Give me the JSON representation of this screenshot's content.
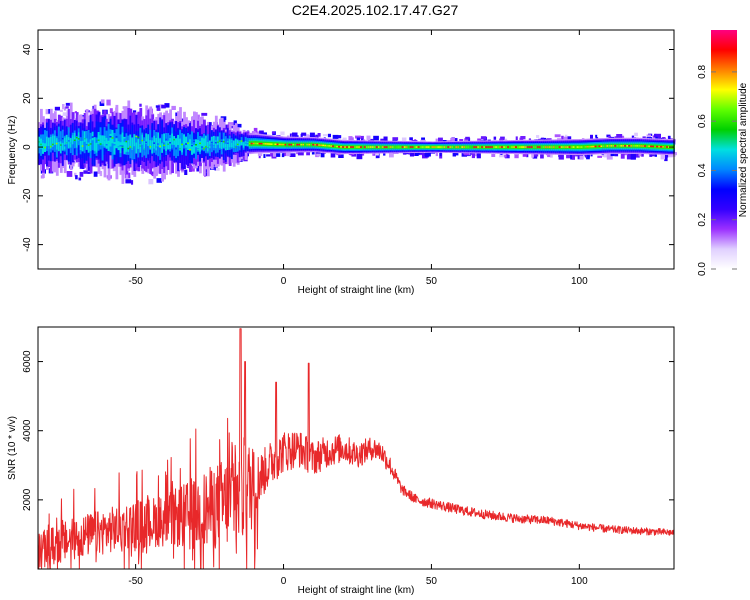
{
  "title": "C2E4.2025.102.17.47.G27",
  "colors": {
    "snr_line": "#e8282a",
    "axis": "#000000",
    "background": "#ffffff"
  },
  "colorbar": {
    "label": "Normalized spectral amplitude",
    "range": [
      0,
      0.97
    ],
    "ticks": [
      "0.0",
      "0.2",
      "0.4",
      "0.6",
      "0.8"
    ],
    "tick_values": [
      0.0,
      0.2,
      0.4,
      0.6,
      0.8
    ],
    "colormap": [
      "#ffffff",
      "#e0d0ff",
      "#9b30ff",
      "#3300ff",
      "#0000ff",
      "#0088ff",
      "#00e0e0",
      "#00d000",
      "#60ff00",
      "#ffff00",
      "#ff8000",
      "#ff0000",
      "#ff0080"
    ]
  },
  "chart_data": [
    {
      "type": "heatmap",
      "name": "spectrogram",
      "xlabel": "Height of straight line (km)",
      "ylabel": "Frequency (Hz)",
      "xlim": [
        -83,
        132
      ],
      "ylim": [
        -50,
        48
      ],
      "xticks": [
        "-50",
        "0",
        "50",
        "100"
      ],
      "xtick_values": [
        -50,
        0,
        50,
        100
      ],
      "yticks": [
        "-40",
        "-20",
        "0",
        "20",
        "40"
      ],
      "ytick_values": [
        -40,
        -20,
        0,
        20,
        40
      ],
      "grid": false,
      "center_frequency": {
        "x": [
          -80,
          -70,
          -60,
          -50,
          -40,
          -30,
          -20,
          -10,
          0,
          10,
          20,
          30,
          40,
          50,
          60,
          70,
          80,
          90,
          100,
          110,
          120,
          130
        ],
        "y": [
          1.5,
          2.5,
          2.0,
          2.0,
          1.5,
          1.0,
          1.0,
          1.5,
          1.0,
          1.0,
          0.0,
          0.0,
          0.0,
          0.0,
          0.0,
          0.0,
          0.0,
          0.0,
          0.0,
          0.5,
          0.5,
          0.0
        ]
      },
      "spread_hz": {
        "x": [
          -80,
          -60,
          -40,
          -20,
          -12,
          0,
          50,
          100,
          130
        ],
        "y": [
          9,
          11,
          10,
          7,
          4,
          3,
          2,
          3,
          3
        ]
      }
    },
    {
      "type": "line",
      "name": "snr",
      "xlabel": "Height of straight line (km)",
      "ylabel": "SNR (10 * v/v)",
      "xlim": [
        -83,
        132
      ],
      "ylim": [
        0,
        7000
      ],
      "xticks": [
        "-50",
        "0",
        "50",
        "100"
      ],
      "xtick_values": [
        -50,
        0,
        50,
        100
      ],
      "yticks": [
        "2000",
        "4000",
        "6000"
      ],
      "ytick_values": [
        2000,
        4000,
        6000
      ],
      "grid": false,
      "envelope": {
        "x": [
          -83,
          -70,
          -60,
          -50,
          -40,
          -30,
          -20,
          -15,
          -10,
          -5,
          0,
          5,
          10,
          15,
          20,
          25,
          30,
          33,
          36,
          40,
          45,
          50,
          60,
          70,
          80,
          90,
          100,
          110,
          120,
          132
        ],
        "y": [
          500,
          900,
          1100,
          1300,
          1400,
          1600,
          1900,
          2100,
          2400,
          3000,
          3400,
          3500,
          3200,
          3400,
          3500,
          3300,
          3500,
          3400,
          3000,
          2300,
          2000,
          1900,
          1700,
          1550,
          1450,
          1400,
          1250,
          1150,
          1100,
          1050
        ]
      },
      "noise_amplitude": {
        "x": [
          -83,
          -40,
          -25,
          -12,
          -8,
          10,
          35,
          40,
          132
        ],
        "y": [
          550,
          750,
          1200,
          1500,
          700,
          500,
          300,
          150,
          100
        ]
      },
      "peaks": [
        {
          "x": -14.5,
          "y": 6950
        },
        {
          "x": -13,
          "y": 6000
        },
        {
          "x": 8.5,
          "y": 5950
        },
        {
          "x": -2.5,
          "y": 5400
        }
      ]
    }
  ]
}
